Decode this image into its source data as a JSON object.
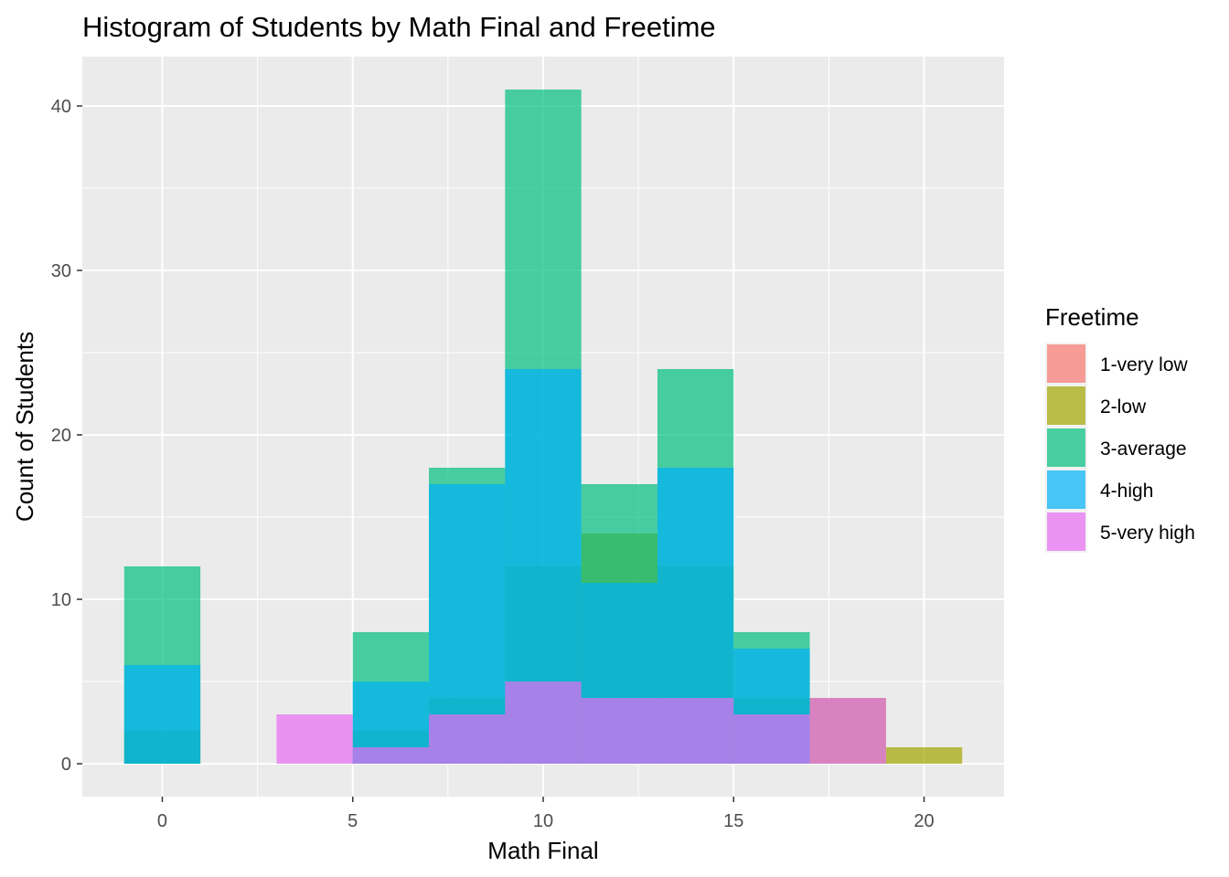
{
  "chart_data": {
    "type": "bar",
    "subtype": "overlaid-histogram",
    "title": "Histogram of Students by Math Final and Freetime",
    "xlabel": "Math Final",
    "ylabel": "Count of Students",
    "xlim": [
      -2.1,
      22.1
    ],
    "ylim": [
      -2,
      43
    ],
    "x_ticks": [
      0,
      5,
      10,
      15,
      20
    ],
    "y_ticks": [
      0,
      10,
      20,
      30,
      40
    ],
    "grid": true,
    "bin_width": 2,
    "bar_opacity": 0.7,
    "legend": {
      "title": "Freetime",
      "position": "right"
    },
    "series": [
      {
        "name": "1-very low",
        "color": "#F8766D",
        "bins": [
          {
            "x": 0,
            "count": 0
          },
          {
            "x": 6,
            "count": 0
          }
        ]
      },
      {
        "name": "2-low",
        "color": "#A3A500",
        "bins": [
          {
            "x": 0,
            "count": 2
          },
          {
            "x": 6,
            "count": 2
          },
          {
            "x": 8,
            "count": 4
          },
          {
            "x": 10,
            "count": 12
          },
          {
            "x": 12,
            "count": 14
          },
          {
            "x": 14,
            "count": 12
          },
          {
            "x": 16,
            "count": 4
          },
          {
            "x": 18,
            "count": 4
          },
          {
            "x": 20,
            "count": 1
          }
        ]
      },
      {
        "name": "3-average",
        "color": "#00BF7D",
        "bins": [
          {
            "x": 0,
            "count": 12
          },
          {
            "x": 6,
            "count": 8
          },
          {
            "x": 8,
            "count": 18
          },
          {
            "x": 10,
            "count": 41
          },
          {
            "x": 12,
            "count": 17
          },
          {
            "x": 14,
            "count": 24
          },
          {
            "x": 16,
            "count": 8
          }
        ]
      },
      {
        "name": "4-high",
        "color": "#00B0F6",
        "bins": [
          {
            "x": 0,
            "count": 6
          },
          {
            "x": 6,
            "count": 5
          },
          {
            "x": 8,
            "count": 17
          },
          {
            "x": 10,
            "count": 24
          },
          {
            "x": 12,
            "count": 11
          },
          {
            "x": 14,
            "count": 18
          },
          {
            "x": 16,
            "count": 7
          }
        ]
      },
      {
        "name": "5-very high",
        "color": "#E76BF3",
        "bins": [
          {
            "x": 4,
            "count": 3
          },
          {
            "x": 6,
            "count": 1
          },
          {
            "x": 8,
            "count": 3
          },
          {
            "x": 10,
            "count": 5
          },
          {
            "x": 12,
            "count": 4
          },
          {
            "x": 14,
            "count": 4
          },
          {
            "x": 16,
            "count": 3
          },
          {
            "x": 18,
            "count": 4
          }
        ]
      }
    ]
  }
}
